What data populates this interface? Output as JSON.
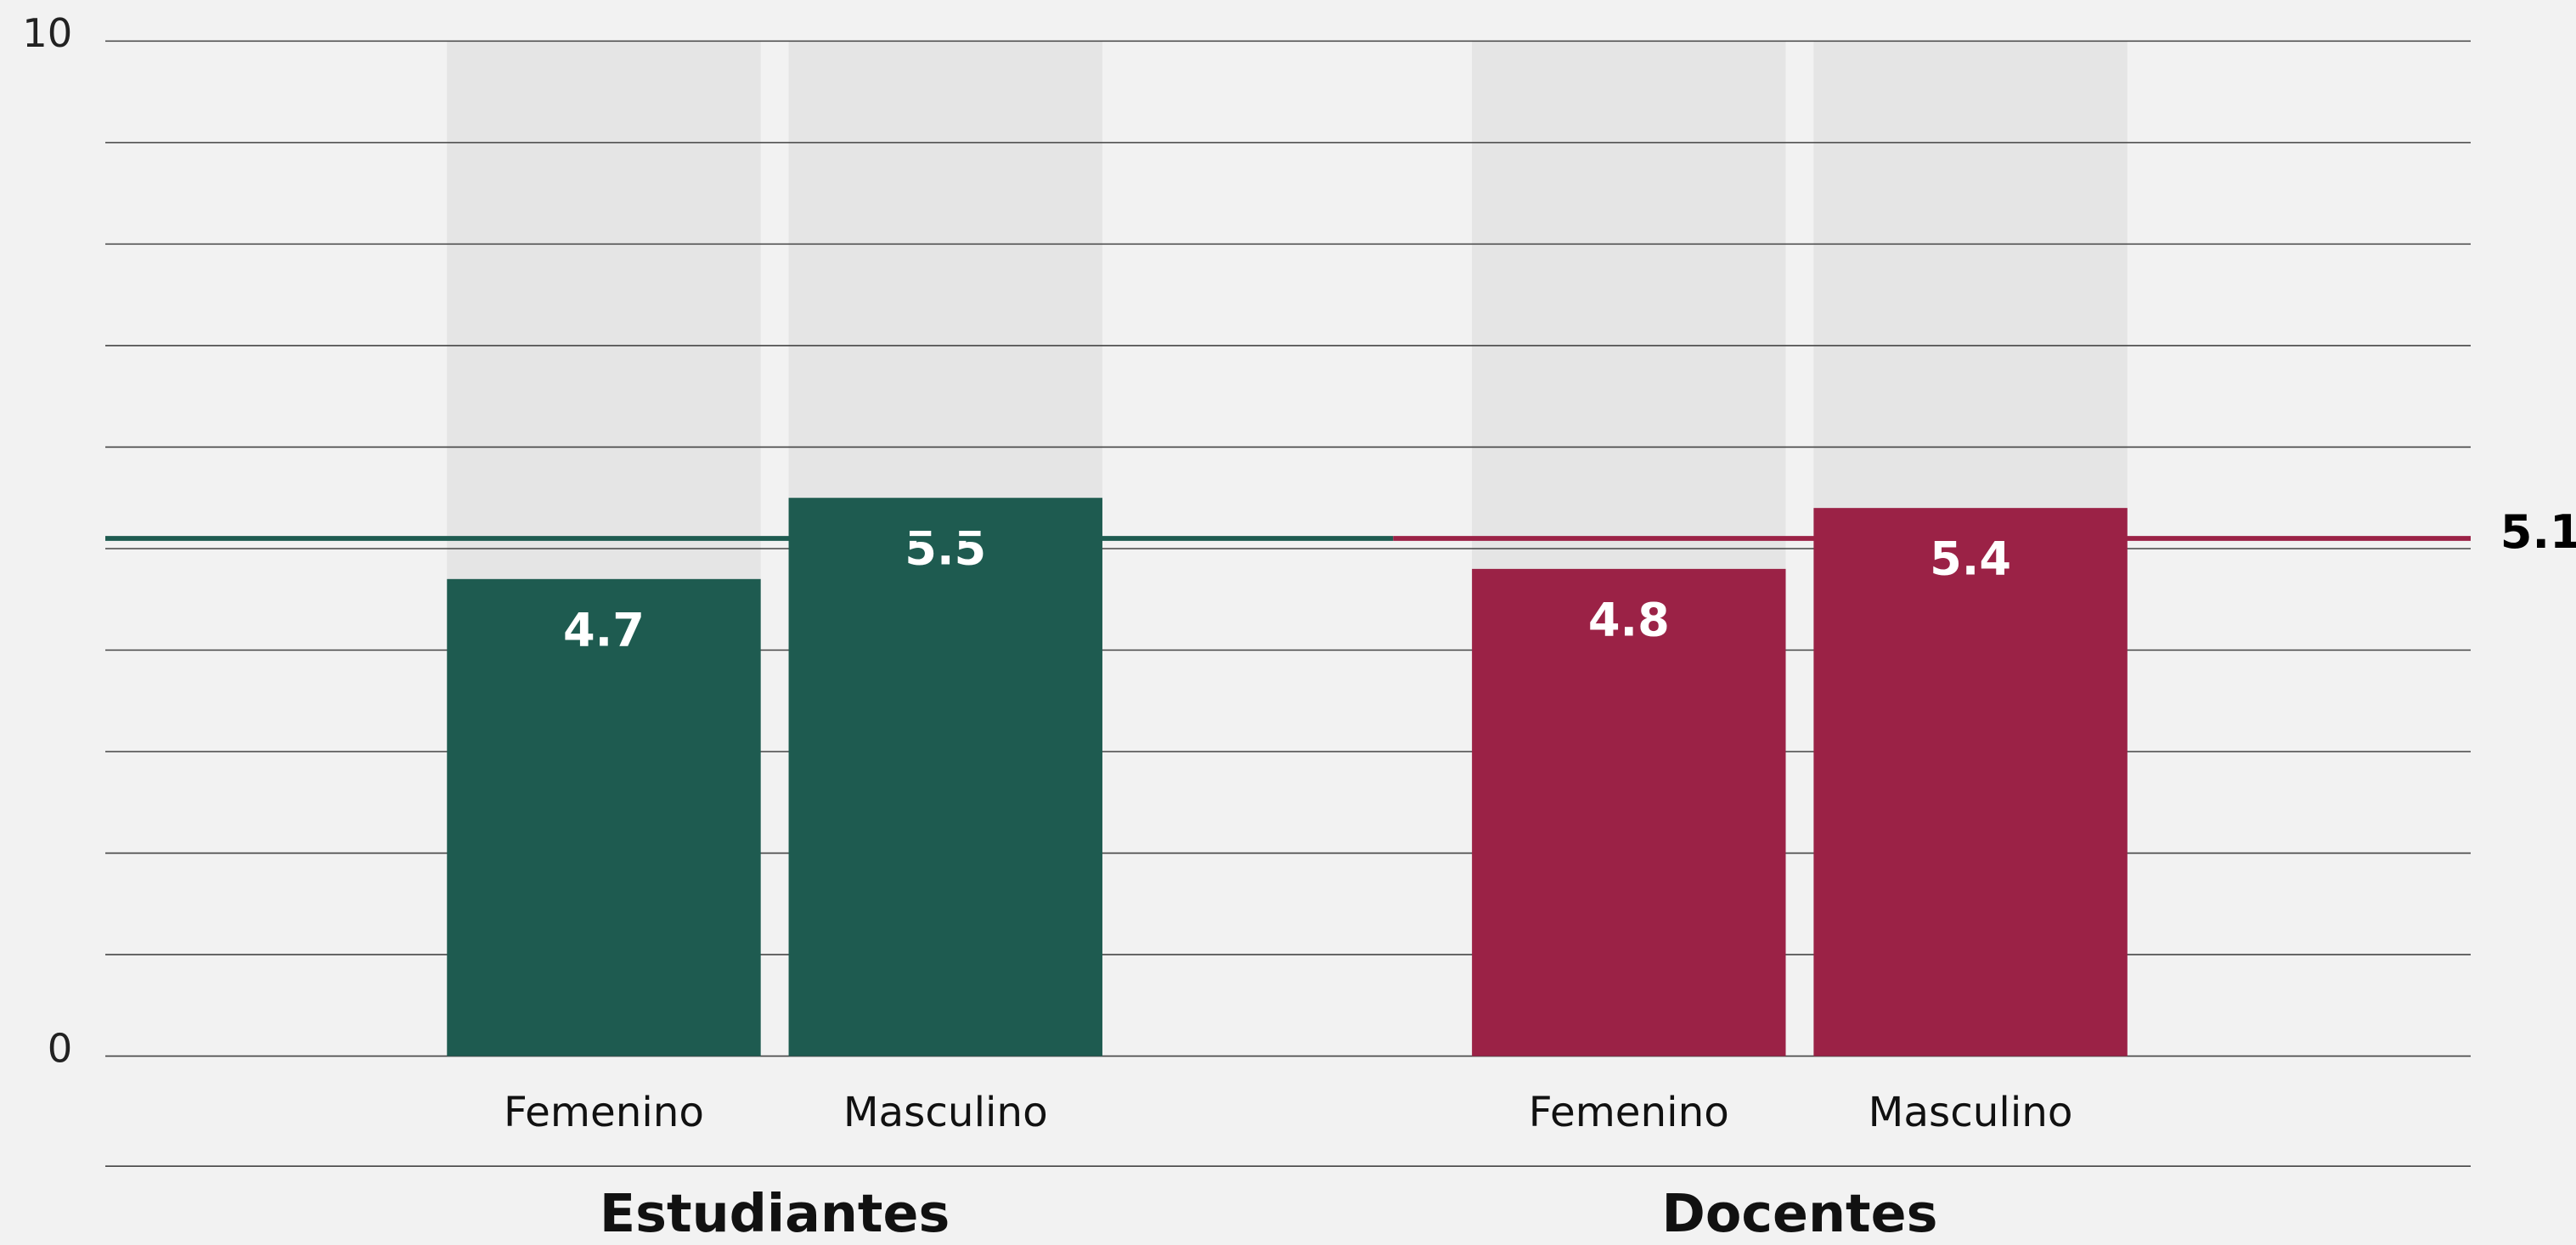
{
  "chart_data": {
    "type": "bar",
    "groups": [
      {
        "name": "Estudiantes",
        "color": "#1e5b50",
        "categories": [
          "Femenino",
          "Masculino"
        ],
        "values": [
          4.7,
          5.5
        ]
      },
      {
        "name": "Docentes",
        "color": "#9b2246",
        "categories": [
          "Femenino",
          "Masculino"
        ],
        "values": [
          4.8,
          5.4
        ]
      }
    ],
    "reference_line": {
      "value": 5.1
    },
    "ylim": [
      0,
      10
    ],
    "yticks": [
      0,
      10
    ],
    "grid_lines": [
      0,
      1,
      2,
      3,
      4,
      5,
      6,
      7,
      8,
      9,
      10
    ],
    "grid": true
  }
}
